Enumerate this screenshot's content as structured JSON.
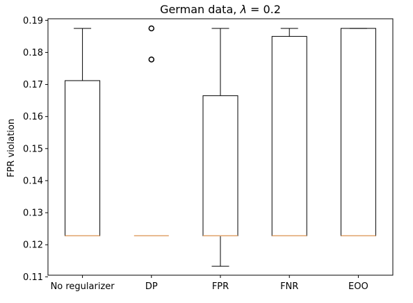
{
  "chart_data": {
    "type": "box",
    "title_prefix": "German data, ",
    "title_lambda": "λ",
    "title_suffix": " =  0.2",
    "xlabel": "",
    "ylabel": "FPR violation",
    "ylim": [
      0.1105,
      0.1905
    ],
    "yticks": [
      0.11,
      0.12,
      0.13,
      0.14,
      0.15,
      0.16,
      0.17,
      0.18,
      0.19
    ],
    "categories": [
      "No regularizer",
      "DP",
      "FPR",
      "FNR",
      "EOO"
    ],
    "boxes": [
      {
        "whislo": 0.1228,
        "q1": 0.1228,
        "med": 0.1228,
        "q3": 0.1712,
        "whishi": 0.1875,
        "fliers": []
      },
      {
        "whislo": 0.1228,
        "q1": 0.1228,
        "med": 0.1228,
        "q3": 0.1228,
        "whishi": 0.1228,
        "fliers": [
          0.1875,
          0.1778
        ]
      },
      {
        "whislo": 0.1133,
        "q1": 0.1228,
        "med": 0.1228,
        "q3": 0.1665,
        "whishi": 0.1875,
        "fliers": []
      },
      {
        "whislo": 0.1228,
        "q1": 0.1228,
        "med": 0.1228,
        "q3": 0.185,
        "whishi": 0.1875,
        "fliers": []
      },
      {
        "whislo": 0.1228,
        "q1": 0.1228,
        "med": 0.1228,
        "q3": 0.1875,
        "whishi": 0.1875,
        "fliers": []
      }
    ],
    "colors": {
      "box": "#000000",
      "median": "#e1a36b"
    },
    "grid": false
  }
}
